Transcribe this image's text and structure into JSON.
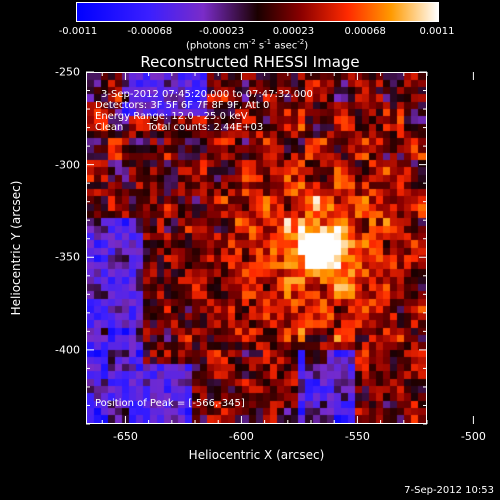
{
  "colorbar": {
    "ticks": [
      "-0.0011",
      "-0.00068",
      "-0.00023",
      "0.00023",
      "0.00068",
      "0.0011"
    ],
    "units_prefix": "(photons cm",
    "units_sup1": "-2",
    "units_mid1": " s",
    "units_sup2": "-1",
    "units_mid2": " asec",
    "units_sup3": "-2",
    "units_suffix": ")"
  },
  "chart_data": {
    "type": "heatmap",
    "title": "Reconstructed RHESSI Image",
    "xlabel": "Heliocentric X (arcsec)",
    "ylabel": "Heliocentric Y (arcsec)",
    "xlim": [
      -667,
      -520
    ],
    "ylim": [
      -440,
      -250
    ],
    "x_ticks": [
      "-650",
      "-600",
      "-550",
      "-500"
    ],
    "x_tick_values": [
      -650,
      -600,
      -550,
      -500
    ],
    "y_ticks": [
      "-250",
      "-300",
      "-350",
      "-400"
    ],
    "y_tick_values": [
      -250,
      -300,
      -350,
      -400
    ],
    "color_range": [
      -0.0011,
      0.0011
    ],
    "colormap": "rainbow-blue-to-white",
    "peak": [
      -566,
      -345
    ],
    "annotations": {
      "time_range": "3-Sep-2012 07:45:20.000 to 07:47:32.000",
      "detectors": "Detectors: 3F 5F 6F 7F 8F 9F, Att 0",
      "energy": "Energy Range: 12.0 - 25.0 keV",
      "method": "Clean",
      "counts": "Total counts: 2.44E+03",
      "peak_label": "Position of Peak = [-566,-345]"
    }
  },
  "timestamp": "7-Sep-2012 10:53"
}
